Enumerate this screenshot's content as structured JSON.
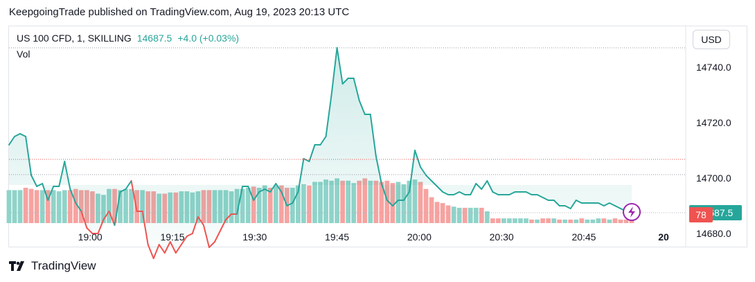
{
  "header": {
    "published": "KeepgoingTrade published on TradingView.com, Aug 19, 2023 20:13 UTC"
  },
  "legend": {
    "symbol": "US 100 CFD, 1, SKILLING",
    "price": "14687.5",
    "change": "+4.0 (+0.03%)",
    "vol_label": "Vol"
  },
  "currency_button": "USD",
  "footer": {
    "brand": "TradingView"
  },
  "colors": {
    "up": "#26a69a",
    "down": "#ef5350",
    "vol_up": "#8fd3c9",
    "vol_down": "#f6a3a1",
    "lightning": "#9c27b0"
  },
  "chart_data": {
    "type": "area",
    "title": "",
    "x_tick_labels": [
      "19:00",
      "19:15",
      "19:30",
      "19:45",
      "20:00",
      "20:30",
      "20:45",
      "20"
    ],
    "y_tick_labels": [
      "14740.0",
      "14720.0",
      "14700.0",
      "14680.0"
    ],
    "ylim": [
      14675,
      14755
    ],
    "last_price_label": "14687.5",
    "volume_badge": "78",
    "series": [
      {
        "values": [
          14712,
          14715,
          14716,
          14715,
          14701,
          14697,
          14698,
          14692,
          14697,
          14697,
          14706,
          14696,
          14691,
          14688,
          14682,
          14680,
          14680,
          14685,
          14688,
          14683,
          14695,
          14696,
          14699,
          14688,
          14688,
          14676,
          14671,
          14676,
          14673,
          14677,
          14673,
          14676,
          14679,
          14680,
          14686,
          14683,
          14675,
          14677,
          14681,
          14685,
          14687,
          14687,
          14697,
          14697,
          14692,
          14695,
          14696,
          14695,
          14698,
          14695,
          14690,
          14691,
          14695,
          14707,
          14706,
          14712,
          14712,
          14715,
          14730,
          14747,
          14734,
          14736,
          14736,
          14728,
          14723,
          14723,
          14708,
          14698,
          14692,
          14690,
          14692,
          14692,
          14695,
          14710,
          14704,
          14701,
          14699,
          14697,
          14695,
          14694,
          14694,
          14695,
          14694,
          14694,
          14698,
          14696,
          14699,
          14695,
          14694,
          14694,
          14694,
          14695,
          14695,
          14695,
          14694,
          14694,
          14693,
          14692,
          14692,
          14690,
          14690,
          14689,
          14692,
          14691,
          14691,
          14691,
          14691,
          14690,
          14691,
          14690,
          14689,
          14688,
          14687.5
        ]
      },
      {
        "volume": [
          78,
          78,
          78,
          80,
          79,
          78,
          78,
          78,
          78,
          77,
          78,
          78,
          79,
          78,
          78,
          77,
          75,
          74,
          79,
          79,
          78,
          79,
          79,
          78,
          78,
          77,
          77,
          75,
          75,
          76,
          76,
          77,
          77,
          76,
          77,
          78,
          78,
          78,
          78,
          78,
          77,
          79,
          79,
          80,
          81,
          80,
          82,
          80,
          82,
          82,
          80,
          80,
          82,
          83,
          82,
          85,
          85,
          87,
          86,
          88,
          86,
          86,
          84,
          86,
          88,
          86,
          86,
          85,
          86,
          84,
          85,
          83,
          86,
          87,
          85,
          79,
          72,
          68,
          67,
          65,
          64,
          63,
          63,
          63,
          63,
          63,
          60,
          54,
          54,
          54,
          54,
          54,
          54,
          54,
          53,
          53,
          54,
          54,
          54,
          53,
          53,
          53,
          53,
          54,
          53,
          53,
          54,
          54,
          53,
          54,
          53,
          53,
          53
        ]
      }
    ]
  }
}
